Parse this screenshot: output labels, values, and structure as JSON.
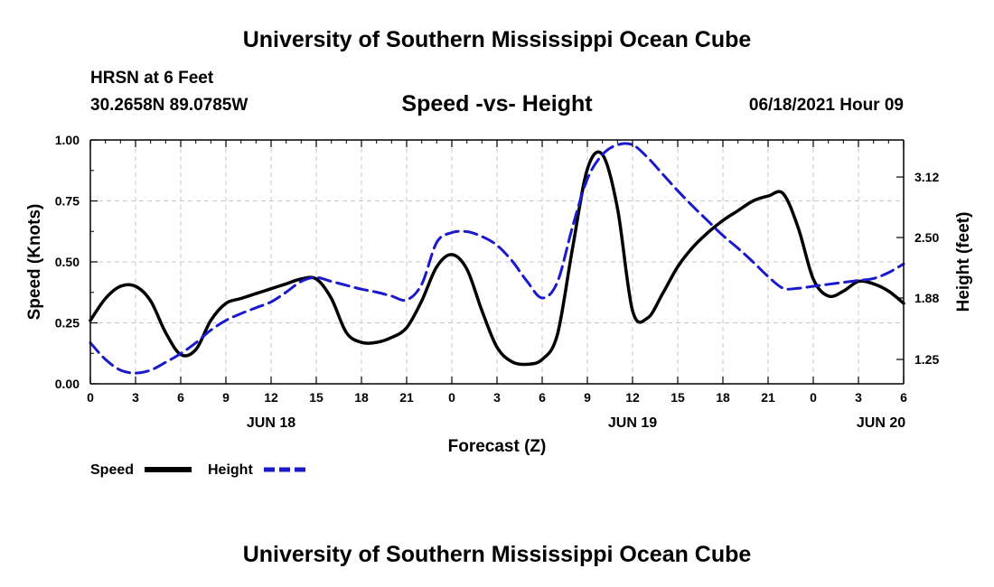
{
  "header": {
    "title": "University of Southern Mississippi Ocean Cube",
    "station_name": "HRSN at 6 Feet",
    "coordinates": "30.2658N  89.0785W",
    "chart_title": "Speed -vs- Height",
    "datetime": "06/18/2021 Hour 09"
  },
  "footer": {
    "title": "University of Southern Mississippi Ocean Cube"
  },
  "colors": {
    "speed": "#000000",
    "height": "#1a1acc",
    "grid": "#c8c8c8"
  },
  "chart_data": {
    "type": "line",
    "title": "Speed -vs- Height",
    "xlabel": "Forecast (Z)",
    "ylabel": "Speed (Knots)",
    "y2label": "Height (feet)",
    "xlim": [
      0,
      54
    ],
    "ylim": [
      0,
      1
    ],
    "y2lim": [
      1.0,
      3.5
    ],
    "x_ticks": [
      0,
      3,
      6,
      9,
      12,
      15,
      18,
      21,
      24,
      27,
      30,
      33,
      36,
      39,
      42,
      45,
      48,
      51,
      54
    ],
    "x_tick_labels": [
      "0",
      "3",
      "6",
      "9",
      "12",
      "15",
      "18",
      "21",
      "0",
      "3",
      "6",
      "9",
      "12",
      "15",
      "18",
      "21",
      "0",
      "3",
      "6"
    ],
    "date_labels": [
      {
        "x": 12,
        "label": "JUN 18"
      },
      {
        "x": 36,
        "label": "JUN 19"
      },
      {
        "x": 52.5,
        "label": "JUN 20"
      }
    ],
    "y_ticks": [
      0,
      0.25,
      0.5,
      0.75,
      1.0
    ],
    "y_tick_labels": [
      "0.00",
      "0.25",
      "0.50",
      "0.75",
      "1.00"
    ],
    "y2_ticks": [
      1.25,
      1.88,
      2.5,
      3.12
    ],
    "y2_tick_labels": [
      "1.25",
      "1.88",
      "2.50",
      "3.12"
    ],
    "grid": true,
    "legend": [
      {
        "name": "Speed",
        "style": "solid"
      },
      {
        "name": "Height",
        "style": "dashed"
      }
    ],
    "series": [
      {
        "name": "Speed",
        "axis": "left",
        "style": "solid",
        "x": [
          0,
          1,
          2,
          3,
          4,
          5,
          6,
          7,
          8,
          9,
          10,
          11,
          12,
          13,
          14,
          15,
          16,
          17,
          18,
          19,
          20,
          21,
          22,
          23,
          24,
          25,
          26,
          27,
          28,
          29,
          30,
          31,
          32,
          33,
          34,
          35,
          36,
          37,
          38,
          39,
          40,
          41,
          42,
          43,
          44,
          45,
          46,
          47,
          48,
          49,
          50,
          51,
          52,
          53,
          54
        ],
        "values": [
          0.26,
          0.35,
          0.4,
          0.4,
          0.34,
          0.21,
          0.12,
          0.14,
          0.26,
          0.33,
          0.35,
          0.37,
          0.39,
          0.41,
          0.43,
          0.43,
          0.35,
          0.21,
          0.17,
          0.17,
          0.19,
          0.23,
          0.34,
          0.48,
          0.53,
          0.47,
          0.3,
          0.15,
          0.09,
          0.08,
          0.1,
          0.2,
          0.55,
          0.88,
          0.94,
          0.72,
          0.3,
          0.27,
          0.37,
          0.48,
          0.56,
          0.62,
          0.67,
          0.71,
          0.75,
          0.77,
          0.78,
          0.64,
          0.43,
          0.36,
          0.38,
          0.42,
          0.41,
          0.38,
          0.33
        ]
      },
      {
        "name": "Height",
        "axis": "right",
        "style": "dashed",
        "x": [
          0,
          1,
          2,
          3,
          4,
          5,
          6,
          7,
          8,
          9,
          10,
          11,
          12,
          13,
          14,
          15,
          16,
          17,
          18,
          19,
          20,
          21,
          22,
          23,
          24,
          25,
          26,
          27,
          28,
          29,
          30,
          31,
          32,
          33,
          34,
          35,
          36,
          37,
          38,
          39,
          40,
          41,
          42,
          43,
          44,
          45,
          46,
          47,
          48,
          49,
          50,
          51,
          52,
          53,
          54
        ],
        "values": [
          1.42,
          1.25,
          1.14,
          1.11,
          1.14,
          1.22,
          1.31,
          1.42,
          1.55,
          1.65,
          1.72,
          1.78,
          1.84,
          1.94,
          2.05,
          2.09,
          2.05,
          2.01,
          1.97,
          1.94,
          1.9,
          1.86,
          2.02,
          2.45,
          2.55,
          2.56,
          2.51,
          2.42,
          2.26,
          2.05,
          1.88,
          2.04,
          2.6,
          3.1,
          3.35,
          3.45,
          3.45,
          3.32,
          3.15,
          2.98,
          2.82,
          2.67,
          2.52,
          2.39,
          2.25,
          2.1,
          1.98,
          1.98,
          2.0,
          2.02,
          2.04,
          2.06,
          2.08,
          2.14,
          2.23
        ]
      }
    ]
  }
}
